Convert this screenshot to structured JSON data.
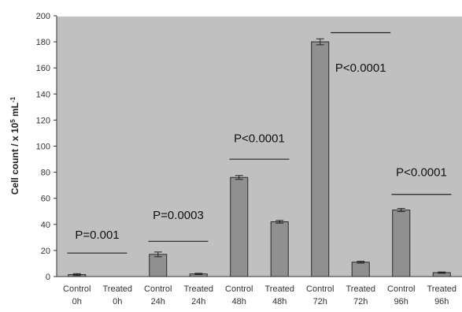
{
  "chart_data": {
    "type": "bar",
    "title": "",
    "xlabel": "",
    "ylabel": "Cell count / x 10",
    "ylabel_sup1": "5",
    "ylabel_mid": " mL",
    "ylabel_sup2": "-1",
    "ylim": [
      0,
      200
    ],
    "yticks": [
      "0",
      "20",
      "40",
      "60",
      "80",
      "100",
      "120",
      "140",
      "160",
      "180",
      "200"
    ],
    "categories": [
      {
        "line1": "Control",
        "line2": "0h"
      },
      {
        "line1": "Treated",
        "line2": "0h"
      },
      {
        "line1": "Control",
        "line2": "24h"
      },
      {
        "line1": "Treated",
        "line2": "24h"
      },
      {
        "line1": "Control",
        "line2": "48h"
      },
      {
        "line1": "Treated",
        "line2": "48h"
      },
      {
        "line1": "Control",
        "line2": "72h"
      },
      {
        "line1": "Treated",
        "line2": "72h"
      },
      {
        "line1": "Control",
        "line2": "96h"
      },
      {
        "line1": "Treated",
        "line2": "96h"
      }
    ],
    "values": [
      1.5,
      0,
      17,
      2,
      76,
      42,
      180,
      11,
      51,
      3
    ],
    "errors": [
      0.7,
      0,
      1.8,
      0.5,
      1.5,
      1,
      2.3,
      0.7,
      1.2,
      0.5
    ],
    "grid": false,
    "annotations": [
      {
        "text": "P=0.001",
        "x": 0.5,
        "y": 29,
        "line_y": 18
      },
      {
        "text": "P=0.0003",
        "x": 2.5,
        "y": 44,
        "line_y": 27
      },
      {
        "text": "P<0.0001",
        "x": 4.5,
        "y": 103,
        "line_y": 90
      },
      {
        "text": "P<0.0001",
        "x": 7,
        "y": 157,
        "line_y": 187
      },
      {
        "text": "P<0.0001",
        "x": 8.5,
        "y": 77,
        "line_y": 63
      }
    ],
    "colors": {
      "plot_bg": "#c0c0c0",
      "bar_fill": "#909090",
      "bar_stroke": "#2a2a2a",
      "annotation_line": "#222222"
    }
  }
}
